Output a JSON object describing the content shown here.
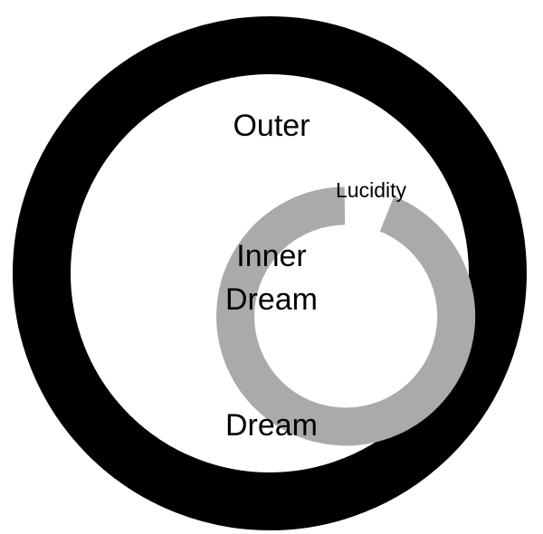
{
  "diagram": {
    "outer_ring_color": "#000000",
    "inner_ring_color": "#aaaaaa",
    "inner_ring_edge_color": "#8c8c8c",
    "background_color": "#ffffff",
    "labels": {
      "outer_top": "Outer",
      "outer_bottom": "Dream",
      "gap_label": "Lucidity",
      "inner_line1": "Inner",
      "inner_line2": "Dream"
    }
  }
}
